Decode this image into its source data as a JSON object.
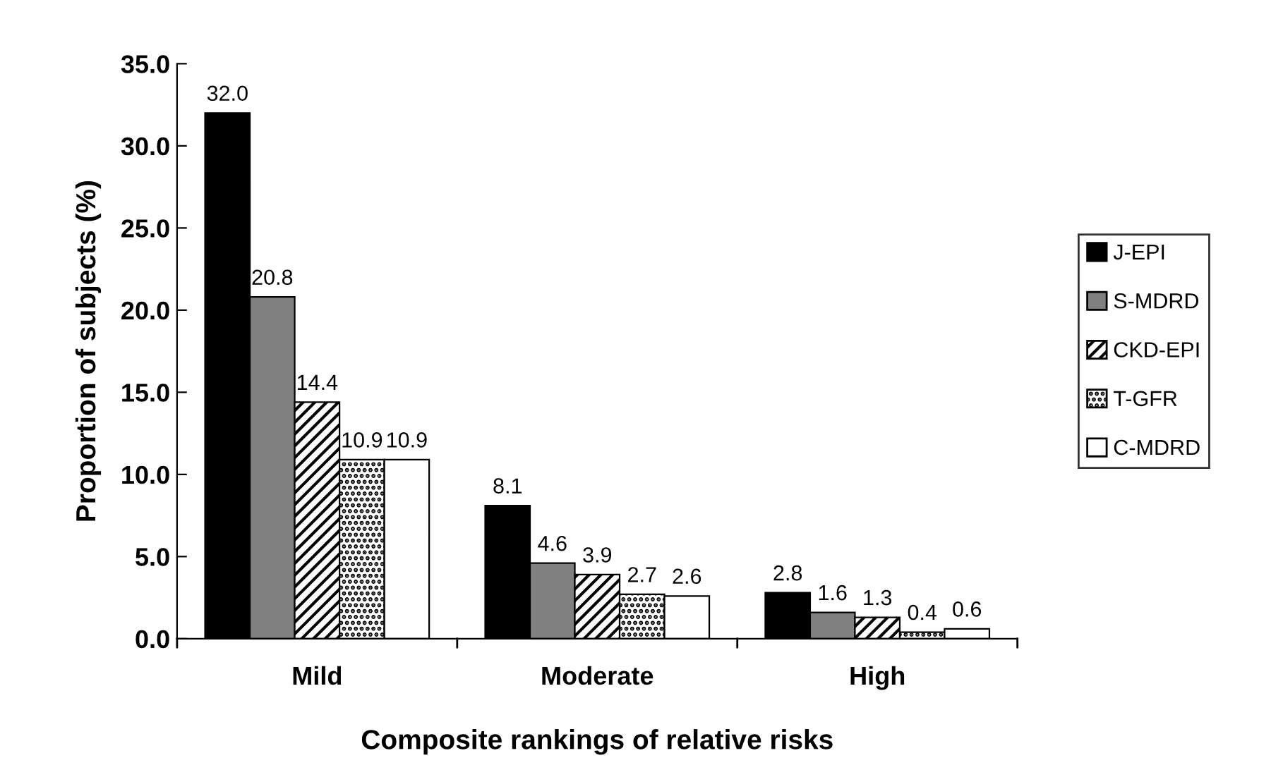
{
  "chart_data": {
    "type": "bar",
    "xlabel": "Composite rankings of relative risks",
    "ylabel": "Proportion of subjects (%)",
    "categories": [
      "Mild",
      "Moderate",
      "High"
    ],
    "series": [
      {
        "name": "J-EPI",
        "color": "#000000",
        "values": [
          32.0,
          8.1,
          2.8
        ],
        "value_labels": [
          "32.0",
          "8.1",
          "2.8"
        ]
      },
      {
        "name": "S-MDRD",
        "color": "#808080",
        "values": [
          20.8,
          4.6,
          1.6
        ],
        "value_labels": [
          "20.8",
          "4.6",
          "1.6"
        ]
      },
      {
        "name": "CKD-EPI",
        "color": "#000000",
        "values": [
          14.4,
          3.9,
          1.3
        ],
        "value_labels": [
          "14.4",
          "3.9",
          "1.3"
        ]
      },
      {
        "name": "T-GFR",
        "color": "#000000",
        "values": [
          10.9,
          2.7,
          0.4
        ],
        "value_labels": [
          "10.9",
          "2.7",
          "0.4"
        ]
      },
      {
        "name": "C-MDRD",
        "color": "#ffffff",
        "values": [
          10.9,
          2.6,
          0.6
        ],
        "value_labels": [
          "10.9",
          "2.6",
          "0.6"
        ]
      }
    ],
    "ylim": [
      0,
      35
    ],
    "yticks": [
      {
        "value": 0,
        "label": "0.0"
      },
      {
        "value": 5,
        "label": "5.0"
      },
      {
        "value": 10,
        "label": "10.0"
      },
      {
        "value": 15,
        "label": "15.0"
      },
      {
        "value": 20,
        "label": "20.0"
      },
      {
        "value": 25,
        "label": "25.0"
      },
      {
        "value": 30,
        "label": "30.0"
      },
      {
        "value": 35,
        "label": "35.0"
      }
    ],
    "grid": false,
    "legend": "right"
  }
}
